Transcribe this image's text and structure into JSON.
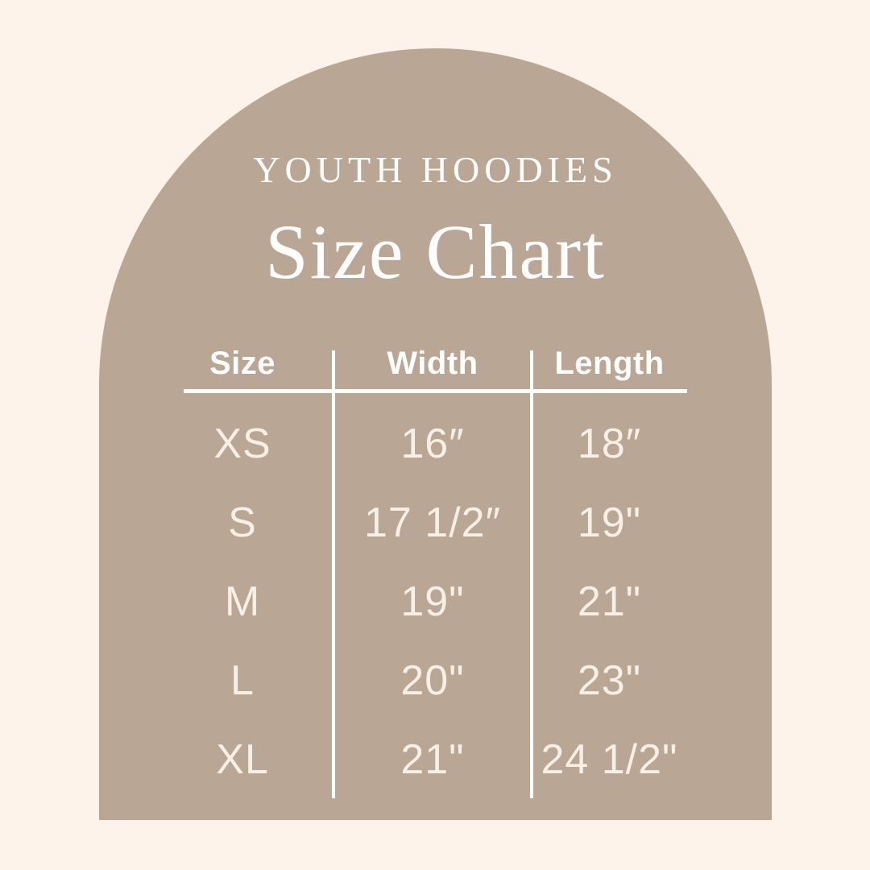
{
  "canvas": {
    "background_color": "#FDF3EB",
    "arch_color": "#B9A695",
    "line_color": "#FFFFFF",
    "header_text_color": "#FFFFFF",
    "value_text_color": "#F8EFE6"
  },
  "header": {
    "subtitle": "YOUTH HOODIES",
    "title": "Size Chart"
  },
  "chart_data": {
    "type": "table",
    "title": "Size Chart",
    "subtitle": "YOUTH HOODIES",
    "columns": [
      "Size",
      "Width",
      "Length"
    ],
    "rows": [
      [
        "XS",
        "16″",
        "18″"
      ],
      [
        "S",
        "17 1/2″",
        "19\""
      ],
      [
        "M",
        "19\"",
        "21\""
      ],
      [
        "L",
        "20\"",
        "23\""
      ],
      [
        "XL",
        "21\"",
        "24 1/2\""
      ]
    ],
    "layout": {
      "legend": "none",
      "grid": "header-rule and two column dividers",
      "shape": "arch panel on cream background"
    }
  }
}
